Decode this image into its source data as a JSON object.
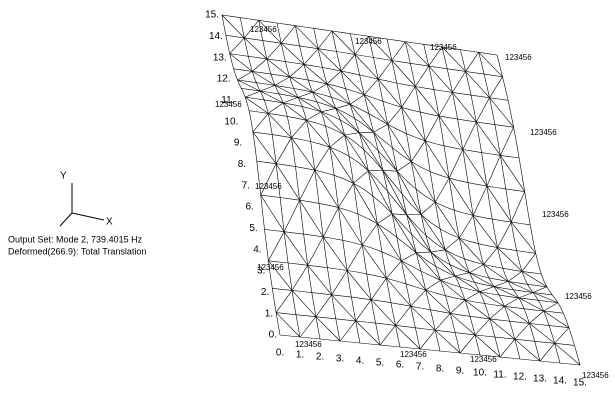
{
  "triad": {
    "x": "X",
    "y": "Y"
  },
  "output": {
    "line1": "Output Set: Mode 2, 739.4015 Hz",
    "line2": "Deformed(266.9): Total Translation"
  },
  "left_labels": [
    "0.",
    "1.",
    "2.",
    "3.",
    "4.",
    "5.",
    "6.",
    "7.",
    "8.",
    "9.",
    "10.",
    "11.",
    "12.",
    "13.",
    "14.",
    "15."
  ],
  "bottom_labels": [
    "0.",
    "1.",
    "2.",
    "3.",
    "4.",
    "5.",
    "6.",
    "7.",
    "8.",
    "9.",
    "10.",
    "11.",
    "12.",
    "13.",
    "14.",
    "15."
  ],
  "constraint_labels": [
    "123456",
    "123456",
    "123456",
    "123456",
    "123456",
    "123456",
    "123456",
    "123456",
    "123456",
    "123456",
    "123456",
    "123456",
    "123456",
    "123456"
  ]
}
